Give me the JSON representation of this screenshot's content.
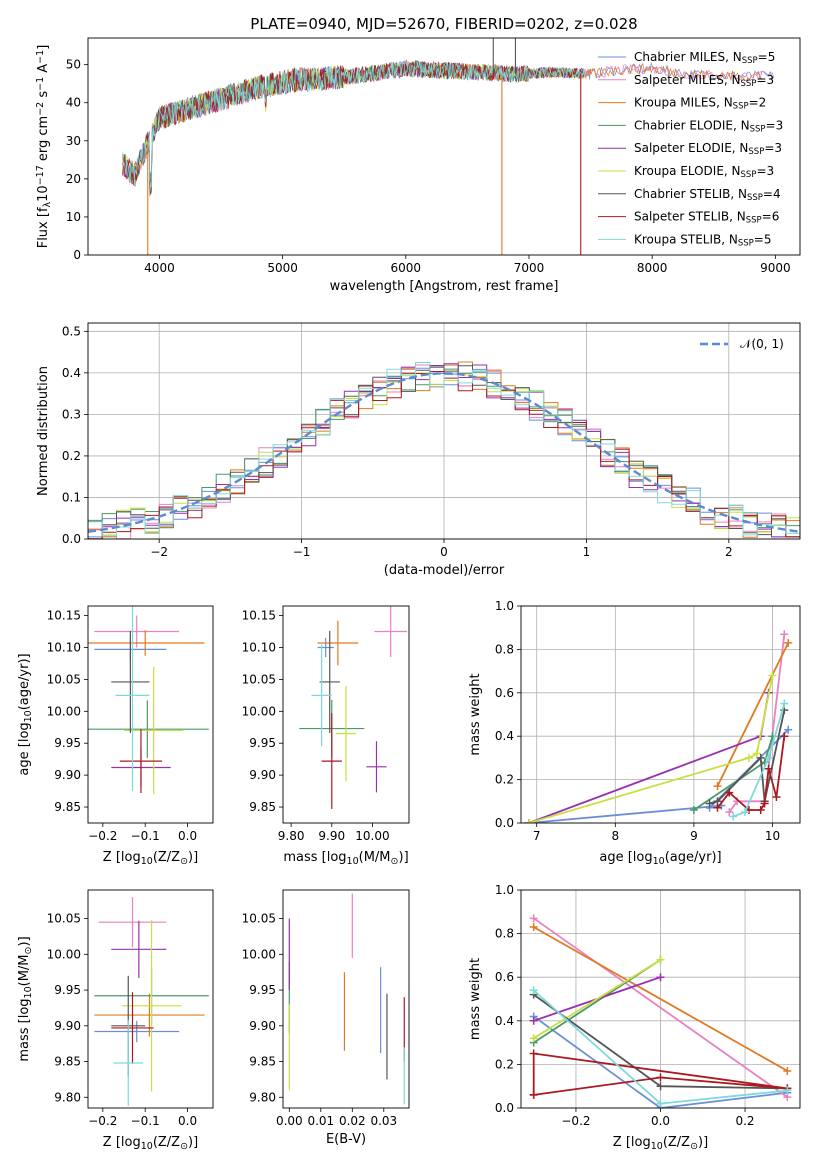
{
  "figure_title": "PLATE=0940, MJD=52670, FIBERID=0202, z=0.028",
  "colors": {
    "Chabrier MILES": "#6a8fd8",
    "Salpeter MILES": "#e882c2",
    "Kroupa MILES": "#e07a22",
    "Chabrier ELODIE": "#4a9a6a",
    "Salpeter ELODIE": "#9a2fb0",
    "Kroupa ELODIE": "#c8e040",
    "Chabrier STELIB": "#555555",
    "Salpeter STELIB": "#aa1a22",
    "Kroupa STELIB": "#7ddada",
    "normal": "#5b8bd0"
  },
  "chart_data": [
    {
      "id": "spectrum",
      "type": "line",
      "title": "PLATE=0940, MJD=52670, FIBERID=0202, z=0.028",
      "xlabel": "wavelength [Angstrom, rest frame]",
      "ylabel_parts": [
        "Flux [f",
        "λ",
        "10",
        "−17",
        " erg cm",
        "−2",
        " s",
        "−1",
        " A",
        "−1",
        "]"
      ],
      "xlim": [
        3420,
        9200
      ],
      "ylim": [
        0,
        57
      ],
      "xticks": [
        4000,
        5000,
        6000,
        7000,
        8000,
        9000
      ],
      "yticks": [
        0,
        10,
        20,
        30,
        40,
        50
      ],
      "legend_position": "top-right",
      "legend": [
        {
          "name": "Chabrier MILES",
          "nssp": "5"
        },
        {
          "name": "Salpeter MILES",
          "nssp": "3"
        },
        {
          "name": "Kroupa MILES",
          "nssp": "2"
        },
        {
          "name": "Chabrier ELODIE",
          "nssp": "3"
        },
        {
          "name": "Salpeter ELODIE",
          "nssp": "3"
        },
        {
          "name": "Kroupa ELODIE",
          "nssp": "3"
        },
        {
          "name": "Chabrier STELIB",
          "nssp": "4"
        },
        {
          "name": "Salpeter STELIB",
          "nssp": "6"
        },
        {
          "name": "Kroupa STELIB",
          "nssp": "5"
        }
      ],
      "continuum": [
        [
          3700,
          24
        ],
        [
          3800,
          21
        ],
        [
          3900,
          29
        ],
        [
          4000,
          36
        ],
        [
          4200,
          38
        ],
        [
          4500,
          41
        ],
        [
          4800,
          44
        ],
        [
          5100,
          46
        ],
        [
          5400,
          46.5
        ],
        [
          5700,
          47.5
        ],
        [
          6000,
          49
        ],
        [
          6300,
          48.5
        ],
        [
          6600,
          48
        ],
        [
          6900,
          47.5
        ],
        [
          7200,
          48
        ],
        [
          7500,
          47.5
        ],
        [
          7700,
          48.5
        ],
        [
          8000,
          49
        ],
        [
          8300,
          47.5
        ],
        [
          8700,
          47
        ],
        [
          9000,
          47
        ]
      ],
      "spikes": [
        {
          "x": 3905,
          "y": 0,
          "series": "Kroupa MILES"
        },
        {
          "x": 6780,
          "y": 0,
          "series": "Kroupa MILES"
        },
        {
          "x": 7420,
          "y": 0,
          "series": "Salpeter STELIB"
        },
        {
          "x": 6710,
          "y": 57,
          "series": "Chabrier STELIB"
        },
        {
          "x": 6890,
          "y": 57,
          "series": "Chabrier STELIB"
        }
      ]
    },
    {
      "id": "residuals",
      "type": "step",
      "xlabel": "(data-model)/error",
      "ylabel": "Normed distribution",
      "xlim": [
        -2.5,
        2.5
      ],
      "ylim": [
        0,
        0.52
      ],
      "xticks": [
        -2,
        -1,
        0,
        1,
        2
      ],
      "yticks": [
        0,
        0.1,
        0.2,
        0.3,
        0.4,
        0.5
      ],
      "grid": true,
      "legend_position": "top-right",
      "normal_label": "𝒩(0, 1)",
      "bin_width": 0.1
    },
    {
      "id": "age_z",
      "type": "errorbar",
      "xlabel_parts": [
        "Z [log",
        "10",
        "(Z/Z",
        "⊙",
        ")]"
      ],
      "ylabel_parts": [
        "age  [log",
        "10",
        "(age/yr)]"
      ],
      "xlim": [
        -0.235,
        0.06
      ],
      "ylim": [
        9.825,
        10.165
      ],
      "xticks": [
        -0.2,
        -0.1,
        0.0
      ],
      "yticks": [
        9.85,
        9.9,
        9.95,
        10.0,
        10.05,
        10.1,
        10.15
      ],
      "points": [
        {
          "series": "Chabrier MILES",
          "x": -0.135,
          "xerr": 0.085,
          "y": 10.097,
          "yerr": 0.018
        },
        {
          "series": "Salpeter MILES",
          "x": -0.12,
          "xerr": 0.1,
          "y": 10.125,
          "yerr": 0.025
        },
        {
          "series": "Kroupa MILES",
          "x": -0.1,
          "xerr": 0.14,
          "y": 10.107,
          "yerr": 0.02
        },
        {
          "series": "Chabrier ELODIE",
          "x": -0.095,
          "xerr": 0.145,
          "y": 9.972,
          "yerr": 0.045
        },
        {
          "series": "Salpeter ELODIE",
          "x": -0.11,
          "xerr": 0.07,
          "y": 9.912,
          "yerr": 0.03
        },
        {
          "series": "Kroupa ELODIE",
          "x": -0.08,
          "xerr": 0.07,
          "y": 9.97,
          "yerr": 0.1
        },
        {
          "series": "Chabrier STELIB",
          "x": -0.135,
          "xerr": 0.045,
          "y": 10.046,
          "yerr": 0.08
        },
        {
          "series": "Salpeter STELIB",
          "x": -0.11,
          "xerr": 0.05,
          "y": 9.922,
          "yerr": 0.05
        },
        {
          "series": "Kroupa STELIB",
          "x": -0.13,
          "xerr": 0.04,
          "y": 10.025,
          "yerr": 0.15
        }
      ]
    },
    {
      "id": "age_mass",
      "type": "errorbar",
      "xlabel_parts": [
        "mass [log",
        "10",
        "(M/M",
        "⊙",
        ")]"
      ],
      "xlim": [
        9.78,
        10.09
      ],
      "ylim": [
        9.825,
        10.165
      ],
      "xticks": [
        9.8,
        9.9,
        10.0
      ],
      "yticks": [
        9.85,
        9.9,
        9.95,
        10.0,
        10.05,
        10.1,
        10.15
      ],
      "points": [
        {
          "series": "Chabrier MILES",
          "x": 9.885,
          "xerr": 0.02,
          "y": 10.1,
          "yerr": 0.015
        },
        {
          "series": "Salpeter MILES",
          "x": 10.045,
          "xerr": 0.04,
          "y": 10.125,
          "yerr": 0.04
        },
        {
          "series": "Kroupa MILES",
          "x": 9.915,
          "xerr": 0.05,
          "y": 10.107,
          "yerr": 0.035
        },
        {
          "series": "Chabrier ELODIE",
          "x": 9.9,
          "xerr": 0.08,
          "y": 9.973,
          "yerr": 0.045
        },
        {
          "series": "Salpeter ELODIE",
          "x": 10.01,
          "xerr": 0.025,
          "y": 9.913,
          "yerr": 0.04
        },
        {
          "series": "Kroupa ELODIE",
          "x": 9.935,
          "xerr": 0.025,
          "y": 9.965,
          "yerr": 0.075
        },
        {
          "series": "Chabrier STELIB",
          "x": 9.895,
          "xerr": 0.025,
          "y": 10.046,
          "yerr": 0.08
        },
        {
          "series": "Salpeter STELIB",
          "x": 9.9,
          "xerr": 0.025,
          "y": 9.922,
          "yerr": 0.075
        },
        {
          "series": "Kroupa STELIB",
          "x": 9.875,
          "xerr": 0.025,
          "y": 10.025,
          "yerr": 0.08
        }
      ]
    },
    {
      "id": "mw_age",
      "type": "line",
      "xlabel_parts": [
        "age  [log",
        "10",
        "(age/yr)]"
      ],
      "ylabel": "mass weight",
      "xlim": [
        6.8,
        10.35
      ],
      "ylim": [
        0,
        1
      ],
      "xticks": [
        7,
        8,
        9,
        10
      ],
      "yticks": [
        0,
        0.2,
        0.4,
        0.6,
        0.8,
        1.0
      ],
      "grid": true,
      "series": [
        {
          "name": "Chabrier MILES",
          "points": [
            [
              6.9,
              0.0
            ],
            [
              9.35,
              0.08
            ],
            [
              9.2,
              0.07
            ],
            [
              10.2,
              0.43
            ]
          ]
        },
        {
          "name": "Salpeter MILES",
          "points": [
            [
              9.45,
              0.05
            ],
            [
              9.55,
              0.1
            ],
            [
              9.9,
              0.1
            ],
            [
              10.15,
              0.87
            ]
          ]
        },
        {
          "name": "Kroupa MILES",
          "points": [
            [
              9.3,
              0.17
            ],
            [
              10.2,
              0.83
            ]
          ]
        },
        {
          "name": "Chabrier ELODIE",
          "points": [
            [
              9.0,
              0.06
            ],
            [
              9.9,
              0.28
            ],
            [
              10.0,
              0.4
            ]
          ]
        },
        {
          "name": "Salpeter ELODIE",
          "points": [
            [
              6.9,
              0.0
            ],
            [
              9.85,
              0.4
            ],
            [
              9.95,
              0.6
            ]
          ]
        },
        {
          "name": "Kroupa ELODIE",
          "points": [
            [
              6.9,
              0.0
            ],
            [
              9.7,
              0.3
            ],
            [
              9.8,
              0.32
            ],
            [
              10.0,
              0.68
            ]
          ]
        },
        {
          "name": "Chabrier STELIB",
          "points": [
            [
              9.2,
              0.09
            ],
            [
              9.3,
              0.1
            ],
            [
              9.85,
              0.3
            ],
            [
              9.9,
              0.1
            ],
            [
              10.15,
              0.52
            ]
          ]
        },
        {
          "name": "Salpeter STELIB",
          "points": [
            [
              9.3,
              0.07
            ],
            [
              9.45,
              0.14
            ],
            [
              9.7,
              0.06
            ],
            [
              9.85,
              0.06
            ],
            [
              9.9,
              0.09
            ],
            [
              9.95,
              0.25
            ],
            [
              10.05,
              0.12
            ],
            [
              10.15,
              0.4
            ]
          ]
        },
        {
          "name": "Kroupa STELIB",
          "points": [
            [
              9.5,
              0.03
            ],
            [
              9.65,
              0.05
            ],
            [
              9.95,
              0.3
            ],
            [
              10.15,
              0.55
            ]
          ]
        }
      ]
    },
    {
      "id": "mass_z",
      "type": "errorbar",
      "xlabel_parts": [
        "Z [log",
        "10",
        "(Z/Z",
        "⊙",
        ")]"
      ],
      "ylabel_parts": [
        "mass [log",
        "10",
        "(M/M",
        "⊙",
        ")]"
      ],
      "xlim": [
        -0.235,
        0.06
      ],
      "ylim": [
        9.785,
        10.09
      ],
      "xticks": [
        -0.2,
        -0.1,
        0.0
      ],
      "yticks": [
        9.8,
        9.85,
        9.9,
        9.95,
        10.0,
        10.05
      ],
      "points": [
        {
          "series": "Chabrier MILES",
          "x": -0.12,
          "xerr": 0.1,
          "y": 9.892,
          "yerr": 0.015
        },
        {
          "series": "Salpeter MILES",
          "x": -0.13,
          "xerr": 0.08,
          "y": 10.045,
          "yerr": 0.035
        },
        {
          "series": "Kroupa MILES",
          "x": -0.09,
          "xerr": 0.13,
          "y": 9.915,
          "yerr": 0.03
        },
        {
          "series": "Chabrier ELODIE",
          "x": -0.085,
          "xerr": 0.135,
          "y": 9.942,
          "yerr": 0.04
        },
        {
          "series": "Salpeter ELODIE",
          "x": -0.115,
          "xerr": 0.065,
          "y": 10.007,
          "yerr": 0.04
        },
        {
          "series": "Kroupa ELODIE",
          "x": -0.085,
          "xerr": 0.07,
          "y": 9.928,
          "yerr": 0.12
        },
        {
          "series": "Chabrier STELIB",
          "x": -0.14,
          "xerr": 0.04,
          "y": 9.9,
          "yerr": 0.07
        },
        {
          "series": "Salpeter STELIB",
          "x": -0.13,
          "xerr": 0.05,
          "y": 9.897,
          "yerr": 0.05
        },
        {
          "series": "Kroupa STELIB",
          "x": -0.14,
          "xerr": 0.035,
          "y": 9.848,
          "yerr": 0.06
        }
      ]
    },
    {
      "id": "mass_ebv",
      "type": "errorbar",
      "xlabel": "E(B-V)",
      "xlim": [
        -0.002,
        0.038
      ],
      "ylim": [
        9.785,
        10.09
      ],
      "xticks": [
        0.0,
        0.01,
        0.02,
        0.03
      ],
      "yticks": [
        9.8,
        9.85,
        9.9,
        9.95,
        10.0,
        10.05
      ],
      "points": [
        {
          "series": "Chabrier MILES",
          "x": 0.029,
          "y": 9.922,
          "yerr": 0.06
        },
        {
          "series": "Salpeter MILES",
          "x": 0.02,
          "y": 10.04,
          "yerr": 0.045
        },
        {
          "series": "Kroupa MILES",
          "x": 0.0175,
          "y": 9.92,
          "yerr": 0.055
        },
        {
          "series": "Chabrier ELODIE",
          "x": 0.0,
          "y": 9.94,
          "yerr": 0.05
        },
        {
          "series": "Salpeter ELODIE",
          "x": 0.0,
          "y": 10.0,
          "yerr": 0.05
        },
        {
          "series": "Kroupa ELODIE",
          "x": 0.0,
          "y": 9.87,
          "yerr": 0.06
        },
        {
          "series": "Chabrier STELIB",
          "x": 0.031,
          "y": 9.885,
          "yerr": 0.06
        },
        {
          "series": "Salpeter STELIB",
          "x": 0.0365,
          "y": 9.895,
          "yerr": 0.045
        },
        {
          "series": "Kroupa STELIB",
          "x": 0.0365,
          "y": 9.83,
          "yerr": 0.04
        }
      ]
    },
    {
      "id": "mw_z",
      "type": "line",
      "xlabel_parts": [
        "Z [log",
        "10",
        "(Z/Z",
        "⊙",
        ")]"
      ],
      "ylabel": "mass weight",
      "xlim": [
        -0.33,
        0.33
      ],
      "ylim": [
        0,
        1
      ],
      "xticks": [
        -0.2,
        0.0,
        0.2
      ],
      "yticks": [
        0,
        0.2,
        0.4,
        0.6,
        0.8,
        1.0
      ],
      "grid": true,
      "series": [
        {
          "name": "Chabrier MILES",
          "points": [
            [
              -0.3,
              0.42
            ],
            [
              0.0,
              0.0
            ],
            [
              0.3,
              0.07
            ]
          ]
        },
        {
          "name": "Salpeter MILES",
          "points": [
            [
              -0.3,
              0.87
            ],
            [
              0.3,
              0.05
            ]
          ]
        },
        {
          "name": "Kroupa MILES",
          "points": [
            [
              -0.3,
              0.83
            ],
            [
              0.3,
              0.17
            ]
          ]
        },
        {
          "name": "Chabrier ELODIE",
          "points": [
            [
              -0.3,
              0.3
            ],
            [
              0.0,
              0.68
            ]
          ]
        },
        {
          "name": "Salpeter ELODIE",
          "points": [
            [
              -0.3,
              0.4
            ],
            [
              0.0,
              0.6
            ]
          ]
        },
        {
          "name": "Kroupa ELODIE",
          "points": [
            [
              -0.3,
              0.32
            ],
            [
              0.0,
              0.68
            ]
          ]
        },
        {
          "name": "Chabrier STELIB",
          "points": [
            [
              -0.3,
              0.52
            ],
            [
              0.0,
              0.1
            ],
            [
              0.3,
              0.09
            ]
          ]
        },
        {
          "name": "Salpeter STELIB",
          "points": [
            [
              -0.3,
              0.06
            ],
            [
              0.0,
              0.14
            ],
            [
              0.3,
              0.09
            ],
            [
              -0.3,
              0.25
            ],
            [
              -0.3,
              0.06
            ]
          ]
        },
        {
          "name": "Kroupa STELIB",
          "points": [
            [
              -0.3,
              0.54
            ],
            [
              0.0,
              0.02
            ],
            [
              0.3,
              0.08
            ]
          ]
        }
      ]
    }
  ]
}
